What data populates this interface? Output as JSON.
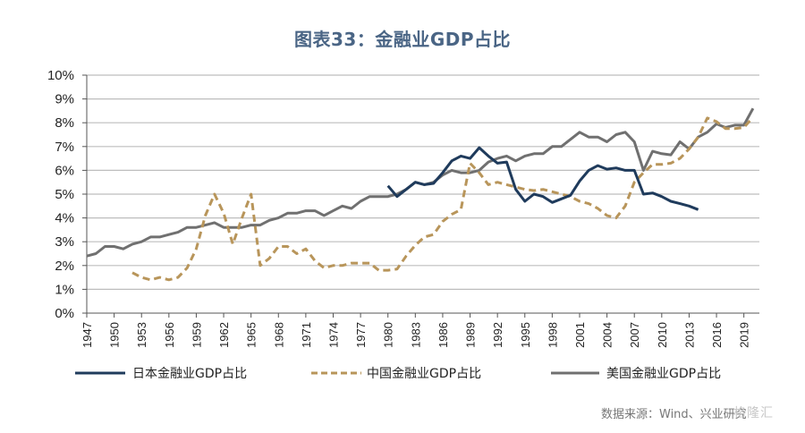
{
  "title": "图表33：金融业GDP占比",
  "source": "数据来源：Wind、兴业研究",
  "watermark": "格隆汇",
  "colors": {
    "japan": "#1f3b5c",
    "china": "#b8955a",
    "us": "#707070",
    "grid": "#bdbdbd",
    "title": "#4a6585"
  },
  "chart_data": {
    "type": "line",
    "title": "图表33：金融业GDP占比",
    "xlabel": "",
    "ylabel": "",
    "xlim": [
      1947,
      2020.7
    ],
    "ylim": [
      0,
      10
    ],
    "grid": true,
    "legend_position": "bottom",
    "y_ticks": [
      "0%",
      "1%",
      "2%",
      "3%",
      "4%",
      "5%",
      "6%",
      "7%",
      "8%",
      "9%",
      "10%"
    ],
    "x_ticks": [
      "1947",
      "1950",
      "1953",
      "1956",
      "1959",
      "1962",
      "1965",
      "1968",
      "1971",
      "1974",
      "1977",
      "1980",
      "1983",
      "1986",
      "1989",
      "1992",
      "1995",
      "1998",
      "2001",
      "2004",
      "2007",
      "2010",
      "2013",
      "2016",
      "2019"
    ],
    "series": [
      {
        "key": "japan",
        "name": "日本金融业GDP占比",
        "style": "solid",
        "x": [
          1980,
          1981,
          1982,
          1983,
          1984,
          1985,
          1986,
          1987,
          1988,
          1989,
          1990,
          1991,
          1992,
          1993,
          1994,
          1995,
          1996,
          1997,
          1998,
          1999,
          2000,
          2001,
          2002,
          2003,
          2004,
          2005,
          2006,
          2007,
          2008,
          2009,
          2010,
          2011,
          2012,
          2013,
          2014
        ],
        "values": [
          5.35,
          4.9,
          5.2,
          5.5,
          5.4,
          5.45,
          5.9,
          6.4,
          6.6,
          6.5,
          6.95,
          6.6,
          6.3,
          6.35,
          5.2,
          4.7,
          5.0,
          4.9,
          4.65,
          4.8,
          4.95,
          5.55,
          6.0,
          6.2,
          6.05,
          6.1,
          6.0,
          6.0,
          5.0,
          5.05,
          4.9,
          4.7,
          4.6,
          4.5,
          4.35
        ]
      },
      {
        "key": "china",
        "name": "中国金融业GDP占比",
        "style": "dashed",
        "x": [
          1952,
          1953,
          1954,
          1955,
          1956,
          1957,
          1958,
          1959,
          1960,
          1961,
          1962,
          1963,
          1964,
          1965,
          1966,
          1967,
          1968,
          1969,
          1970,
          1971,
          1972,
          1973,
          1974,
          1975,
          1976,
          1977,
          1978,
          1979,
          1980,
          1981,
          1982,
          1983,
          1984,
          1985,
          1986,
          1987,
          1988,
          1989,
          1990,
          1991,
          1992,
          1993,
          1994,
          1995,
          1996,
          1997,
          1998,
          1999,
          2000,
          2001,
          2002,
          2003,
          2004,
          2005,
          2006,
          2007,
          2008,
          2009,
          2010,
          2011,
          2012,
          2013,
          2014,
          2015,
          2016,
          2017,
          2018,
          2019,
          2019.7
        ],
        "values": [
          1.7,
          1.5,
          1.4,
          1.5,
          1.4,
          1.5,
          1.9,
          2.7,
          4.1,
          5.0,
          4.2,
          2.9,
          4.0,
          5.0,
          2.0,
          2.3,
          2.8,
          2.8,
          2.5,
          2.7,
          2.2,
          1.9,
          2.0,
          2.0,
          2.1,
          2.1,
          2.1,
          1.8,
          1.8,
          1.85,
          2.4,
          2.85,
          3.2,
          3.3,
          3.85,
          4.15,
          4.35,
          6.3,
          5.9,
          5.4,
          5.5,
          5.4,
          5.3,
          5.2,
          5.15,
          5.2,
          5.1,
          5.0,
          4.9,
          4.7,
          4.6,
          4.4,
          4.1,
          4.0,
          4.5,
          5.5,
          5.9,
          6.25,
          6.25,
          6.3,
          6.5,
          6.9,
          7.4,
          8.2,
          8.05,
          7.75,
          7.75,
          7.8,
          8.1
        ]
      },
      {
        "key": "us",
        "name": "美国金融业GDP占比",
        "style": "solid",
        "x": [
          1947,
          1948,
          1949,
          1950,
          1951,
          1952,
          1953,
          1954,
          1955,
          1956,
          1957,
          1958,
          1959,
          1960,
          1961,
          1962,
          1963,
          1964,
          1965,
          1966,
          1967,
          1968,
          1969,
          1970,
          1971,
          1972,
          1973,
          1974,
          1975,
          1976,
          1977,
          1978,
          1979,
          1980,
          1981,
          1982,
          1983,
          1984,
          1985,
          1986,
          1987,
          1988,
          1989,
          1990,
          1991,
          1992,
          1993,
          1994,
          1995,
          1996,
          1997,
          1998,
          1999,
          2000,
          2001,
          2002,
          2003,
          2004,
          2005,
          2006,
          2007,
          2008,
          2009,
          2010,
          2011,
          2012,
          2013,
          2014,
          2015,
          2016,
          2017,
          2018,
          2019,
          2020
        ],
        "values": [
          2.4,
          2.5,
          2.8,
          2.8,
          2.7,
          2.9,
          3.0,
          3.2,
          3.2,
          3.3,
          3.4,
          3.6,
          3.6,
          3.7,
          3.8,
          3.6,
          3.6,
          3.6,
          3.7,
          3.7,
          3.9,
          4.0,
          4.2,
          4.2,
          4.3,
          4.3,
          4.1,
          4.3,
          4.5,
          4.4,
          4.7,
          4.9,
          4.9,
          4.9,
          5.0,
          5.2,
          5.5,
          5.4,
          5.5,
          5.8,
          6.0,
          5.9,
          5.9,
          6.0,
          6.35,
          6.5,
          6.6,
          6.4,
          6.6,
          6.7,
          6.7,
          7.0,
          7.0,
          7.3,
          7.6,
          7.4,
          7.4,
          7.2,
          7.5,
          7.6,
          7.2,
          6.0,
          6.8,
          6.7,
          6.65,
          7.2,
          6.9,
          7.4,
          7.6,
          7.95,
          7.8,
          7.9,
          7.9,
          8.6
        ]
      }
    ]
  }
}
